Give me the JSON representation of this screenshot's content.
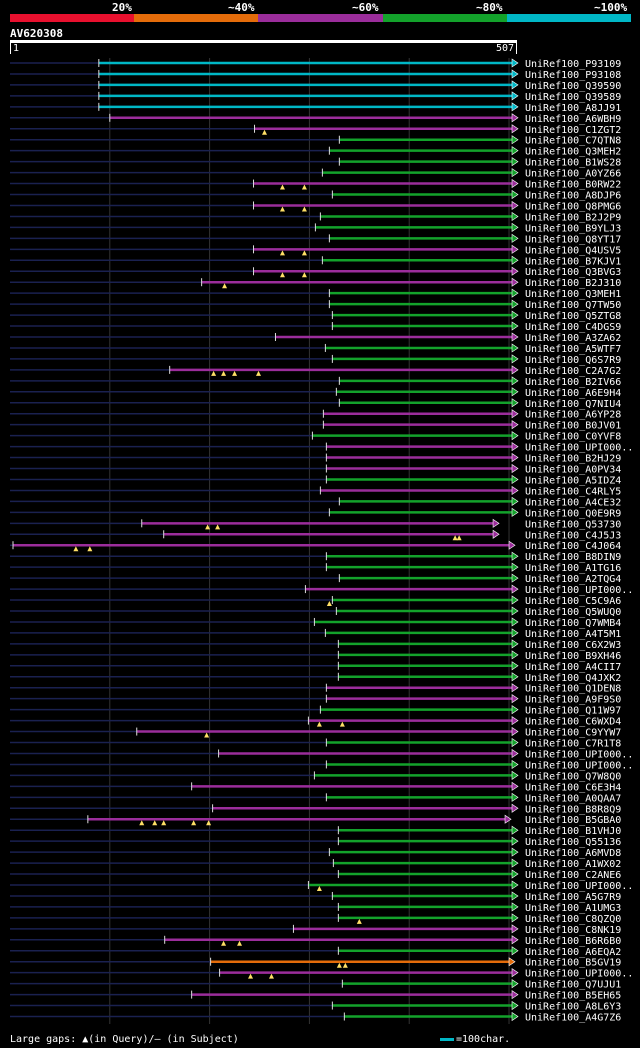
{
  "legend": {
    "colors": [
      "#e8102e",
      "#e46c0a",
      "#9b2d9b",
      "#13a22b",
      "#00b7c6"
    ],
    "labels": [
      "20%",
      "~40%",
      "~60%",
      "~80%",
      "~100%"
    ]
  },
  "query": {
    "name": "AV620308",
    "start": "1",
    "end": "507",
    "length": 507
  },
  "footer": {
    "gaps_text": "Large gaps: ▲(in Query)/– (in Subject)",
    "scale_text": "=100char."
  },
  "hits": [
    {
      "id": "UniRef100_P93109",
      "s": 89,
      "c": "#00b7c6"
    },
    {
      "id": "UniRef100_P93108",
      "s": 89,
      "c": "#00b7c6"
    },
    {
      "id": "UniRef100_Q39590",
      "s": 89,
      "c": "#00b7c6"
    },
    {
      "id": "UniRef100_Q39589",
      "s": 89,
      "c": "#00b7c6"
    },
    {
      "id": "UniRef100_A8JJ91",
      "s": 89,
      "c": "#00b7c6"
    },
    {
      "id": "UniRef100_A6WBH9",
      "s": 100,
      "c": "#9b2d9b"
    },
    {
      "id": "UniRef100_C1ZGT2",
      "s": 245,
      "c": "#9b2d9b",
      "g": [
        255
      ]
    },
    {
      "id": "UniRef100_C7QTN8",
      "s": 330,
      "c": "#13a22b"
    },
    {
      "id": "UniRef100_Q3MEH2",
      "s": 320,
      "c": "#13a22b"
    },
    {
      "id": "UniRef100_B1WS28",
      "s": 330,
      "c": "#13a22b"
    },
    {
      "id": "UniRef100_A0YZ66",
      "s": 313,
      "c": "#13a22b"
    },
    {
      "id": "UniRef100_B0RW22",
      "s": 244,
      "c": "#9b2d9b",
      "g": [
        273,
        295
      ]
    },
    {
      "id": "UniRef100_A8DJP6",
      "s": 323,
      "c": "#13a22b"
    },
    {
      "id": "UniRef100_Q8PMG6",
      "s": 244,
      "c": "#9b2d9b",
      "g": [
        273,
        295
      ]
    },
    {
      "id": "UniRef100_B2J2P9",
      "s": 311,
      "c": "#13a22b"
    },
    {
      "id": "UniRef100_B9YLJ3",
      "s": 306,
      "c": "#13a22b"
    },
    {
      "id": "UniRef100_Q8YT17",
      "s": 320,
      "c": "#13a22b"
    },
    {
      "id": "UniRef100_Q4USV5",
      "s": 244,
      "c": "#9b2d9b",
      "g": [
        273,
        295
      ]
    },
    {
      "id": "UniRef100_B7KJV1",
      "s": 313,
      "c": "#13a22b"
    },
    {
      "id": "UniRef100_Q3BVG3",
      "s": 244,
      "c": "#9b2d9b",
      "g": [
        273,
        295
      ]
    },
    {
      "id": "UniRef100_B2J310",
      "s": 192,
      "c": "#9b2d9b",
      "g": [
        215
      ]
    },
    {
      "id": "UniRef100_Q3MEH1",
      "s": 320,
      "c": "#13a22b"
    },
    {
      "id": "UniRef100_Q7TW50",
      "s": 320,
      "c": "#13a22b"
    },
    {
      "id": "UniRef100_Q5ZTG8",
      "s": 323,
      "c": "#13a22b"
    },
    {
      "id": "UniRef100_C4DGS9",
      "s": 323,
      "c": "#13a22b"
    },
    {
      "id": "UniRef100_A3ZA62",
      "s": 266,
      "c": "#9b2d9b"
    },
    {
      "id": "UniRef100_A5WTF7",
      "s": 316,
      "c": "#13a22b"
    },
    {
      "id": "UniRef100_Q6S7R9",
      "s": 323,
      "c": "#13a22b"
    },
    {
      "id": "UniRef100_C2A7G2",
      "s": 160,
      "c": "#9b2d9b",
      "g": [
        204,
        214,
        225,
        249
      ]
    },
    {
      "id": "UniRef100_B2IV66",
      "s": 330,
      "c": "#13a22b"
    },
    {
      "id": "UniRef100_A6E9H4",
      "s": 327,
      "c": "#13a22b"
    },
    {
      "id": "UniRef100_Q7NIU4",
      "s": 330,
      "c": "#13a22b"
    },
    {
      "id": "UniRef100_A6YP28",
      "s": 314,
      "c": "#9b2d9b"
    },
    {
      "id": "UniRef100_B0JV01",
      "s": 314,
      "c": "#9b2d9b"
    },
    {
      "id": "UniRef100_C0YVF8",
      "s": 303,
      "c": "#13a22b"
    },
    {
      "id": "UniRef100_UPI000..",
      "s": 317,
      "c": "#9b2d9b"
    },
    {
      "id": "UniRef100_B2HJ29",
      "s": 317,
      "c": "#9b2d9b"
    },
    {
      "id": "UniRef100_A0PV34",
      "s": 317,
      "c": "#9b2d9b"
    },
    {
      "id": "UniRef100_A5IDZ4",
      "s": 317,
      "c": "#13a22b"
    },
    {
      "id": "UniRef100_C4RLY5",
      "s": 311,
      "c": "#9b2d9b"
    },
    {
      "id": "UniRef100_A4CE32",
      "s": 330,
      "c": "#13a22b"
    },
    {
      "id": "UniRef100_Q0E9R9",
      "s": 320,
      "c": "#13a22b"
    },
    {
      "id": "UniRef100_Q53730",
      "s": 132,
      "c": "#9b2d9b",
      "e": 484,
      "g": [
        198,
        208
      ]
    },
    {
      "id": "UniRef100_C4J5J3",
      "s": 154,
      "c": "#9b2d9b",
      "e": 484,
      "g": [
        446,
        450
      ]
    },
    {
      "id": "UniRef100_C4J064",
      "s": 3,
      "c": "#9b2d9b",
      "e": 500,
      "g": [
        66,
        80
      ]
    },
    {
      "id": "UniRef100_B8DIN9",
      "s": 317,
      "c": "#13a22b"
    },
    {
      "id": "UniRef100_A1TG16",
      "s": 317,
      "c": "#13a22b"
    },
    {
      "id": "UniRef100_A2TQG4",
      "s": 330,
      "c": "#13a22b"
    },
    {
      "id": "UniRef100_UPI000..",
      "s": 296,
      "c": "#9b2d9b"
    },
    {
      "id": "UniRef100_C5C9A6",
      "s": 323,
      "c": "#13a22b",
      "g": [
        320
      ]
    },
    {
      "id": "UniRef100_Q5WUQ0",
      "s": 327,
      "c": "#13a22b"
    },
    {
      "id": "UniRef100_Q7WMB4",
      "s": 305,
      "c": "#13a22b"
    },
    {
      "id": "UniRef100_A4T5M1",
      "s": 316,
      "c": "#13a22b"
    },
    {
      "id": "UniRef100_C6X2W3",
      "s": 329,
      "c": "#13a22b"
    },
    {
      "id": "UniRef100_B9XH46",
      "s": 329,
      "c": "#13a22b"
    },
    {
      "id": "UniRef100_A4CII7",
      "s": 329,
      "c": "#13a22b"
    },
    {
      "id": "UniRef100_Q4JXK2",
      "s": 329,
      "c": "#13a22b"
    },
    {
      "id": "UniRef100_Q1DEN8",
      "s": 317,
      "c": "#9b2d9b"
    },
    {
      "id": "UniRef100_A9F9S0",
      "s": 317,
      "c": "#9b2d9b"
    },
    {
      "id": "UniRef100_Q11W97",
      "s": 311,
      "c": "#13a22b"
    },
    {
      "id": "UniRef100_C6WXD4",
      "s": 299,
      "c": "#9b2d9b",
      "g": [
        310,
        333
      ]
    },
    {
      "id": "UniRef100_C9YYW7",
      "s": 127,
      "c": "#9b2d9b",
      "g": [
        197
      ]
    },
    {
      "id": "UniRef100_C7R1T8",
      "s": 317,
      "c": "#13a22b"
    },
    {
      "id": "UniRef100_UPI000..",
      "s": 209,
      "c": "#9b2d9b"
    },
    {
      "id": "UniRef100_UPI000..",
      "s": 317,
      "c": "#13a22b"
    },
    {
      "id": "UniRef100_Q7W8Q0",
      "s": 305,
      "c": "#13a22b"
    },
    {
      "id": "UniRef100_C6E3H4",
      "s": 182,
      "c": "#9b2d9b"
    },
    {
      "id": "UniRef100_A0QAA7",
      "s": 317,
      "c": "#13a22b"
    },
    {
      "id": "UniRef100_B8R8Q9",
      "s": 203,
      "c": "#9b2d9b"
    },
    {
      "id": "UniRef100_B5GBA0",
      "s": 78,
      "c": "#9b2d9b",
      "e": 496,
      "g": [
        132,
        145,
        154,
        184,
        199
      ]
    },
    {
      "id": "UniRef100_B1VHJ0",
      "s": 329,
      "c": "#13a22b"
    },
    {
      "id": "UniRef100_Q55136",
      "s": 329,
      "c": "#13a22b"
    },
    {
      "id": "UniRef100_A6MVD8",
      "s": 320,
      "c": "#13a22b"
    },
    {
      "id": "UniRef100_A1WX02",
      "s": 324,
      "c": "#13a22b"
    },
    {
      "id": "UniRef100_C2ANE6",
      "s": 329,
      "c": "#13a22b"
    },
    {
      "id": "UniRef100_UPI000..",
      "s": 299,
      "c": "#13a22b",
      "g": [
        310
      ]
    },
    {
      "id": "UniRef100_A5G7R9",
      "s": 323,
      "c": "#13a22b"
    },
    {
      "id": "UniRef100_A1UMG3",
      "s": 329,
      "c": "#13a22b"
    },
    {
      "id": "UniRef100_C8QZQ0",
      "s": 329,
      "c": "#13a22b",
      "g": [
        350
      ]
    },
    {
      "id": "UniRef100_C8NK19",
      "s": 284,
      "c": "#9b2d9b"
    },
    {
      "id": "UniRef100_B6R6B0",
      "s": 155,
      "c": "#9b2d9b",
      "g": [
        214,
        230
      ]
    },
    {
      "id": "UniRef100_A6EQA2",
      "s": 329,
      "c": "#13a22b"
    },
    {
      "id": "UniRef100_B5GV19",
      "s": 201,
      "c": "#e46c0a",
      "e": 500,
      "g": [
        330,
        336
      ]
    },
    {
      "id": "UniRef100_UPI000..",
      "s": 210,
      "c": "#9b2d9b",
      "g": [
        241,
        262
      ]
    },
    {
      "id": "UniRef100_Q7UJU1",
      "s": 333,
      "c": "#13a22b"
    },
    {
      "id": "UniRef100_B5EH65",
      "s": 182,
      "c": "#9b2d9b"
    },
    {
      "id": "UniRef100_A8L6Y3",
      "s": 323,
      "c": "#13a22b"
    },
    {
      "id": "UniRef100_A4G7Z6",
      "s": 335,
      "c": "#13a22b"
    }
  ]
}
